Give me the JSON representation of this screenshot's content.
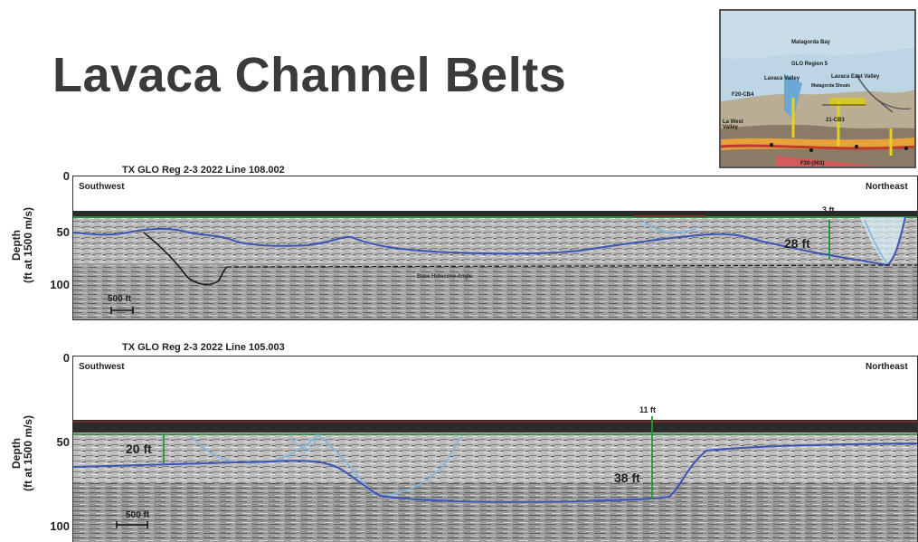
{
  "slide": {
    "title": "Lavaca Channel Belts"
  },
  "inset_map": {
    "labels": {
      "bay": "Matagorda Bay",
      "region": "GLO Region 5",
      "lavaca_valley": "Lavaca Valley",
      "lavaca_east_valley": "Lavaca East Valley",
      "shoals": "Matagorda Shoals",
      "f20": "F20-CB4",
      "west_valley": "La West\nValley",
      "f21": "21-CB3",
      "f20_unit": "F20-(003)"
    }
  },
  "profiles": [
    {
      "title": "TX GLO Reg 2-3 2022 Line 108.002",
      "left_dir": "Southwest",
      "right_dir": "Northeast",
      "y_label_line1": "Depth",
      "y_label_line2": "(ft at 1500 m/s)",
      "ticks": [
        "0",
        "50",
        "100"
      ],
      "scale_label": "500 ft",
      "annotations": {
        "small_thickness": "3 ft",
        "thickness": "28 ft",
        "faint_label": "Base Holocene Angle"
      }
    },
    {
      "title": "TX GLO Reg 2-3 2022 Line 105.003",
      "left_dir": "Southwest",
      "right_dir": "Northeast",
      "y_label_line1": "Depth",
      "y_label_line2": "(ft at 1500 m/s)",
      "ticks": [
        "0",
        "50",
        "100"
      ],
      "scale_label": "500 ft",
      "annotations": {
        "small_thickness": "11 ft",
        "thickness_left": "20 ft",
        "thickness": "38 ft"
      }
    }
  ],
  "colors": {
    "seafloor": "#2e8b3a",
    "channel_base": "#3d55b8",
    "channel_fill": "#7fb6e0",
    "surface_dark": "#8b2d2d",
    "measure": "#1f9a3a",
    "title": "#3b3b3b"
  }
}
